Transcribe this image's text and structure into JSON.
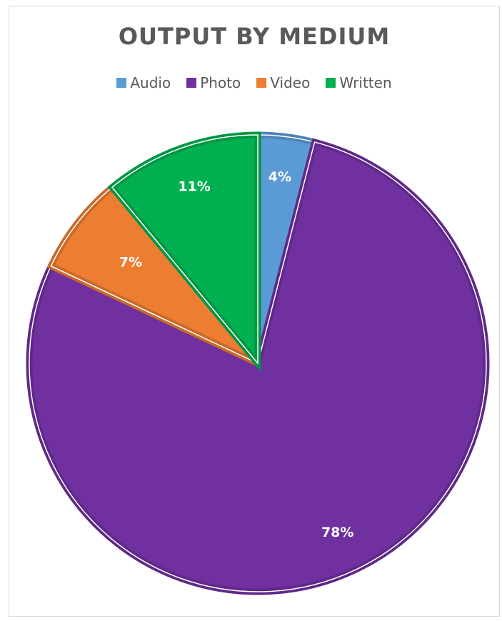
{
  "chart_data": {
    "type": "pie",
    "title": "OUTPUT BY MEDIUM",
    "legend_position": "top",
    "categories": [
      "Audio",
      "Photo",
      "Video",
      "Written"
    ],
    "values": [
      4,
      78,
      7,
      11
    ],
    "labels": [
      "4%",
      "78%",
      "7%",
      "11%"
    ],
    "colors": [
      "#5b9bd5",
      "#7030a0",
      "#ed7d31",
      "#00b050"
    ]
  }
}
